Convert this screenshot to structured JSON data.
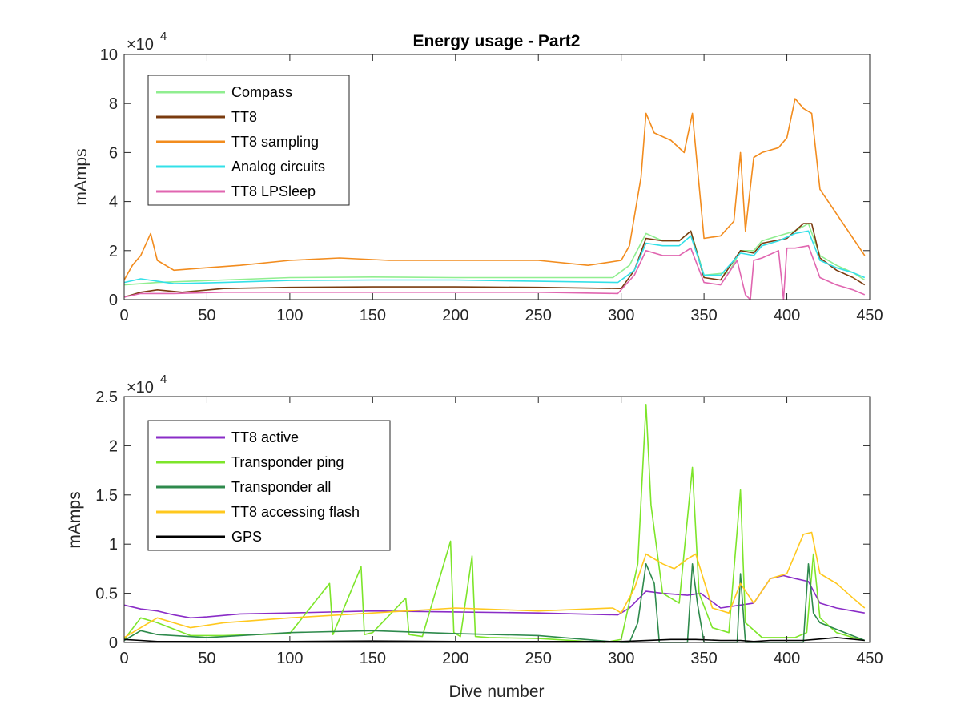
{
  "figure_title": "Energy usage - Part2",
  "chart_data": [
    {
      "type": "line",
      "title": "Energy usage - Part2",
      "xlabel": "",
      "ylabel": "mAmps",
      "xlim": [
        0,
        450
      ],
      "ylim": [
        0,
        100000
      ],
      "y_multiplier_label": "×10",
      "y_multiplier_exponent": "4",
      "xticks": [
        "0",
        "50",
        "100",
        "150",
        "200",
        "250",
        "300",
        "350",
        "400",
        "450"
      ],
      "yticks": [
        "0",
        "2",
        "4",
        "6",
        "8",
        "10"
      ],
      "legend_position": "top-left",
      "grid": false,
      "series": [
        {
          "name": "Compass",
          "color": "#90ee90",
          "x": [
            0,
            20,
            40,
            60,
            80,
            100,
            150,
            200,
            250,
            295,
            305,
            315,
            325,
            335,
            342,
            350,
            365,
            372,
            380,
            385,
            395,
            405,
            413,
            420,
            430,
            440,
            447
          ],
          "y": [
            6000,
            7000,
            7500,
            8000,
            8500,
            9000,
            9200,
            9000,
            9000,
            9000,
            14000,
            27000,
            24000,
            24000,
            28000,
            10000,
            11000,
            20000,
            20000,
            24000,
            26000,
            28000,
            31000,
            18000,
            14000,
            11000,
            8000
          ]
        },
        {
          "name": "TT8",
          "color": "#7a3b0f",
          "x": [
            0,
            10,
            20,
            35,
            60,
            100,
            150,
            200,
            250,
            300,
            308,
            315,
            325,
            335,
            342,
            350,
            360,
            372,
            380,
            385,
            400,
            410,
            415,
            420,
            430,
            440,
            447
          ],
          "y": [
            1000,
            3000,
            4000,
            3000,
            4500,
            5000,
            5200,
            5200,
            5000,
            4500,
            12000,
            25000,
            24000,
            24000,
            28000,
            9000,
            8000,
            20000,
            19000,
            23000,
            25000,
            31000,
            31000,
            17000,
            12000,
            9000,
            6000
          ]
        },
        {
          "name": "TT8 sampling",
          "color": "#f28c1e",
          "x": [
            0,
            5,
            10,
            16,
            20,
            30,
            50,
            70,
            100,
            130,
            160,
            190,
            220,
            250,
            280,
            300,
            305,
            312,
            315,
            320,
            330,
            338,
            343,
            350,
            360,
            368,
            372,
            375,
            380,
            385,
            395,
            400,
            405,
            410,
            415,
            420,
            430,
            440,
            447
          ],
          "y": [
            8000,
            14000,
            18000,
            27000,
            16000,
            12000,
            13000,
            14000,
            16000,
            17000,
            16000,
            16000,
            16000,
            16000,
            14000,
            16000,
            22000,
            50000,
            76000,
            68000,
            65000,
            60000,
            76000,
            25000,
            26000,
            32000,
            60000,
            28000,
            58000,
            60000,
            62000,
            66000,
            82000,
            78000,
            76000,
            45000,
            35000,
            25000,
            18000
          ]
        },
        {
          "name": "Analog circuits",
          "color": "#33e0e8",
          "x": [
            0,
            10,
            30,
            60,
            100,
            150,
            200,
            250,
            298,
            308,
            315,
            325,
            335,
            342,
            350,
            360,
            372,
            380,
            385,
            395,
            405,
            413,
            420,
            430,
            440,
            447
          ],
          "y": [
            7000,
            8500,
            6500,
            7000,
            7800,
            8000,
            8000,
            7500,
            7000,
            12000,
            23000,
            22000,
            22000,
            26000,
            10000,
            10000,
            19000,
            18000,
            22000,
            24000,
            27000,
            28000,
            16000,
            13000,
            11000,
            9000
          ]
        },
        {
          "name": "TT8 LPSleep",
          "color": "#e066b0",
          "x": [
            0,
            10,
            30,
            60,
            100,
            150,
            200,
            250,
            298,
            308,
            315,
            325,
            335,
            342,
            350,
            360,
            370,
            375,
            378,
            380,
            385,
            395,
            398,
            400,
            405,
            413,
            420,
            430,
            440,
            447
          ],
          "y": [
            1000,
            2500,
            2500,
            3000,
            3000,
            3000,
            3000,
            3000,
            2500,
            10000,
            20000,
            18000,
            18000,
            21000,
            7000,
            6000,
            16000,
            2000,
            0,
            16000,
            17000,
            20000,
            0,
            21000,
            21000,
            22000,
            9000,
            6000,
            4000,
            2000
          ]
        }
      ]
    },
    {
      "type": "line",
      "title": "",
      "xlabel": "Dive number",
      "ylabel": "mAmps",
      "xlim": [
        0,
        450
      ],
      "ylim": [
        0,
        25000
      ],
      "y_multiplier_label": "×10",
      "y_multiplier_exponent": "4",
      "xticks": [
        "0",
        "50",
        "100",
        "150",
        "200",
        "250",
        "300",
        "350",
        "400",
        "450"
      ],
      "yticks": [
        "0",
        "0.5",
        "1",
        "1.5",
        "2",
        "2.5"
      ],
      "legend_position": "top-left",
      "grid": false,
      "series": [
        {
          "name": "TT8 active",
          "color": "#8a2cc7",
          "x": [
            0,
            10,
            20,
            30,
            40,
            50,
            70,
            100,
            150,
            200,
            250,
            298,
            305,
            315,
            325,
            340,
            348,
            360,
            372,
            380,
            390,
            398,
            405,
            413,
            420,
            430,
            440,
            447
          ],
          "y": [
            3800,
            3400,
            3200,
            2800,
            2500,
            2600,
            2900,
            3000,
            3200,
            3100,
            3000,
            2800,
            3500,
            5200,
            5000,
            4800,
            5000,
            3500,
            3800,
            4000,
            6500,
            6800,
            6500,
            6200,
            4000,
            3500,
            3200,
            3000
          ]
        },
        {
          "name": "Transponder ping",
          "color": "#7de52a",
          "x": [
            0,
            10,
            20,
            40,
            60,
            100,
            124,
            126,
            143,
            145,
            150,
            170,
            172,
            180,
            197,
            199,
            203,
            210,
            212,
            220,
            250,
            290,
            300,
            310,
            315,
            318,
            325,
            335,
            343,
            347,
            355,
            365,
            372,
            375,
            385,
            395,
            405,
            412,
            416,
            420,
            430,
            440,
            447
          ],
          "y": [
            300,
            2500,
            2000,
            700,
            700,
            900,
            6000,
            800,
            7700,
            800,
            1000,
            4500,
            800,
            600,
            10300,
            1000,
            600,
            8800,
            600,
            500,
            400,
            0,
            300,
            8000,
            24200,
            14000,
            5000,
            4000,
            17800,
            5000,
            1500,
            1000,
            15500,
            2000,
            500,
            500,
            500,
            1000,
            9000,
            2500,
            1000,
            500,
            200
          ]
        },
        {
          "name": "Transponder all",
          "color": "#2e8a4c",
          "x": [
            0,
            10,
            20,
            50,
            100,
            150,
            200,
            250,
            300,
            305,
            310,
            315,
            320,
            323,
            340,
            343,
            346,
            350,
            370,
            372,
            375,
            410,
            413,
            416,
            420,
            435,
            447
          ],
          "y": [
            200,
            1200,
            800,
            500,
            1000,
            1200,
            900,
            700,
            0,
            0,
            2000,
            8000,
            6000,
            0,
            0,
            8000,
            4000,
            0,
            0,
            7000,
            0,
            0,
            8000,
            3000,
            2000,
            1000,
            200
          ]
        },
        {
          "name": "TT8 accessing flash",
          "color": "#ffc81e",
          "x": [
            0,
            10,
            20,
            40,
            60,
            100,
            150,
            200,
            250,
            295,
            300,
            308,
            315,
            325,
            332,
            340,
            345,
            355,
            365,
            372,
            380,
            390,
            400,
            410,
            415,
            420,
            430,
            440,
            447
          ],
          "y": [
            500,
            1500,
            2500,
            1500,
            2000,
            2500,
            3000,
            3500,
            3200,
            3500,
            3000,
            5500,
            9000,
            8000,
            7500,
            8500,
            9000,
            3500,
            3000,
            6000,
            4000,
            6500,
            7000,
            11000,
            11200,
            7000,
            6000,
            4500,
            3500
          ]
        },
        {
          "name": "GPS",
          "color": "#000000",
          "x": [
            0,
            10,
            20,
            50,
            100,
            150,
            200,
            250,
            300,
            330,
            345,
            360,
            372,
            380,
            390,
            410,
            430,
            447
          ],
          "y": [
            300,
            200,
            100,
            100,
            100,
            150,
            100,
            100,
            100,
            300,
            300,
            200,
            200,
            100,
            200,
            200,
            500,
            200
          ]
        }
      ]
    }
  ]
}
